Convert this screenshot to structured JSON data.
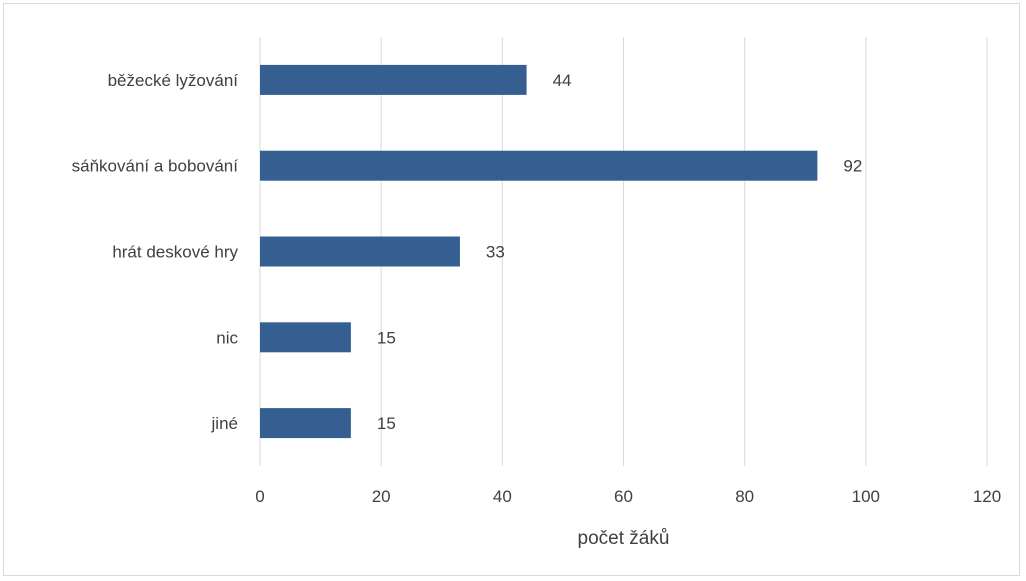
{
  "chart_data": {
    "type": "bar",
    "orientation": "horizontal",
    "categories": [
      "běžecké lyžování",
      "sáňkování a bobování",
      "hrát deskové hry",
      "nic",
      "jiné"
    ],
    "values": [
      44,
      92,
      33,
      15,
      15
    ],
    "xlabel": "počet žáků",
    "ylabel": "",
    "xlim": [
      0,
      120
    ],
    "xticks": [
      0,
      20,
      40,
      60,
      80,
      100,
      120
    ],
    "grid": true,
    "legend": "none",
    "bar_color": "#355f91",
    "gridline_color": "#d9d9d9",
    "text_color": "#404040"
  }
}
